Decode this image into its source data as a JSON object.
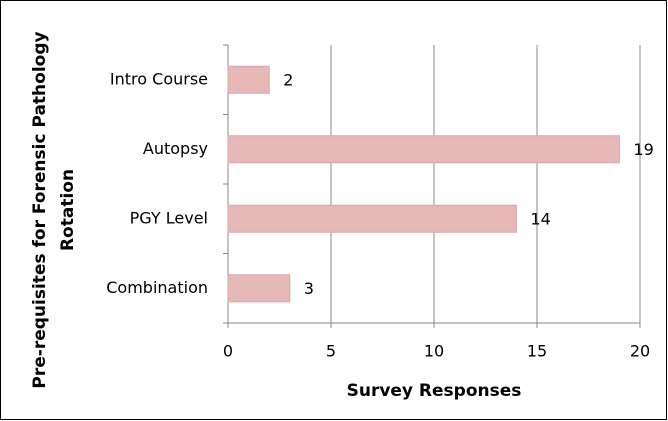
{
  "chart_data": {
    "type": "barh",
    "categories": [
      "Intro Course",
      "Autopsy",
      "PGY Level",
      "Combination"
    ],
    "values": [
      2,
      19,
      14,
      3
    ],
    "color": "#e6b9b8",
    "xlim": [
      0,
      20
    ],
    "xticks": [
      0,
      5,
      10,
      15,
      20
    ],
    "grid": true,
    "xlabel": "Survey Responses",
    "ylabel": [
      "Pre-requisites for Forensic Pathology",
      "Rotation"
    ]
  }
}
